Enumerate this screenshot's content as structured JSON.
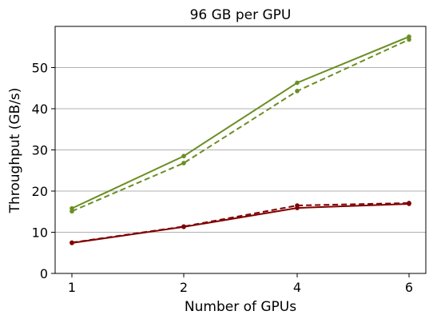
{
  "chart_data": {
    "type": "line",
    "title": "96 GB per GPU",
    "xlabel": "Number of GPUs",
    "ylabel": "Throughput (GB/s)",
    "categories": [
      "1",
      "2",
      "4",
      "6"
    ],
    "ylim": [
      0,
      60
    ],
    "yticks": [
      0,
      10,
      20,
      30,
      40,
      50
    ],
    "grid": "horizontal",
    "series": [
      {
        "color": "#6b8e23",
        "style": "solid",
        "values": [
          15.8,
          28.5,
          46.3,
          57.5
        ]
      },
      {
        "color": "#6b8e23",
        "style": "dashed",
        "values": [
          15.1,
          26.8,
          44.3,
          56.8
        ]
      },
      {
        "color": "#800000",
        "style": "solid",
        "values": [
          7.4,
          11.3,
          15.9,
          16.9
        ]
      },
      {
        "color": "#800000",
        "style": "dashed",
        "values": [
          7.5,
          11.4,
          16.5,
          17.1
        ]
      }
    ]
  }
}
